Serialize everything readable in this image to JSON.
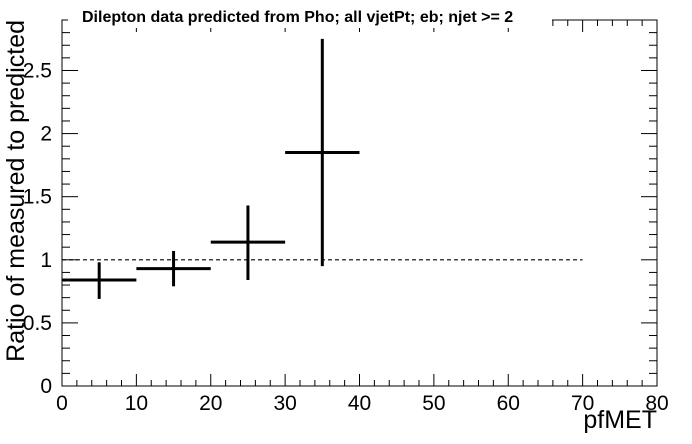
{
  "chart_data": {
    "type": "scatter",
    "title": "Dilepton data predicted from Pho; all vjetPt; eb; njet >= 2",
    "xlabel": "pfMET",
    "ylabel": "Ratio of measured to predicted",
    "xlim": [
      0,
      80
    ],
    "ylim": [
      0,
      2.9
    ],
    "x_ticks": [
      0,
      10,
      20,
      30,
      40,
      50,
      60,
      70,
      80
    ],
    "x_tick_labels": [
      "0",
      "10",
      "20",
      "30",
      "40",
      "50",
      "60",
      "70",
      "80"
    ],
    "y_ticks": [
      0,
      0.5,
      1,
      1.5,
      2,
      2.5
    ],
    "y_tick_labels": [
      "0",
      "0.5",
      "1",
      "1.5",
      "2",
      "2.5"
    ],
    "grid": false,
    "legend": "none",
    "series": [
      {
        "points": [
          {
            "x": 5,
            "xlow": 0,
            "xhigh": 10,
            "y": 0.84,
            "ylow": 0.69,
            "yhigh": 0.98
          },
          {
            "x": 15,
            "xlow": 10,
            "xhigh": 20,
            "y": 0.93,
            "ylow": 0.79,
            "yhigh": 1.07
          },
          {
            "x": 25,
            "xlow": 20,
            "xhigh": 30,
            "y": 1.14,
            "ylow": 0.84,
            "yhigh": 1.43
          },
          {
            "x": 35,
            "xlow": 30,
            "xhigh": 40,
            "y": 1.85,
            "ylow": 0.95,
            "yhigh": 2.75
          }
        ]
      }
    ],
    "reference_line": {
      "y": 1,
      "xstart": 0,
      "xend": 70,
      "style": "dashed"
    }
  }
}
